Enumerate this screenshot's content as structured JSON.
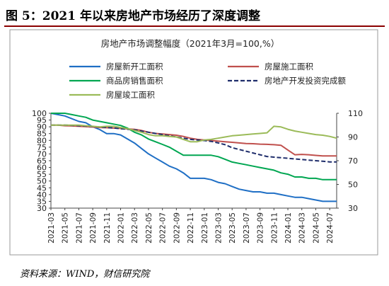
{
  "figure": {
    "title": "图 5：2021 年以来房地产市场经历了深度调整",
    "source": "资料来源：WIND，财信研究院"
  },
  "chart_data": {
    "type": "line",
    "title": "房地产市场调整幅度（2021年3月=100,%）",
    "xlabel": "",
    "ylabel": "",
    "x": [
      "2021-03",
      "2021-04",
      "2021-05",
      "2021-06",
      "2021-07",
      "2021-08",
      "2021-09",
      "2021-10",
      "2021-11",
      "2021-12",
      "2022-01",
      "2022-02",
      "2022-03",
      "2022-04",
      "2022-05",
      "2022-06",
      "2022-07",
      "2022-08",
      "2022-09",
      "2022-10",
      "2022-11",
      "2022-12",
      "2023-01",
      "2023-02",
      "2023-03",
      "2023-04",
      "2023-05",
      "2023-06",
      "2023-07",
      "2023-08",
      "2023-09",
      "2023-10",
      "2023-11",
      "2023-12",
      "2024-01",
      "2024-02",
      "2024-03",
      "2024-04",
      "2024-05",
      "2024-06",
      "2024-07",
      "2024-08"
    ],
    "x_tick_labels": [
      "2021-03",
      "2021-05",
      "2021-07",
      "2021-09",
      "2021-11",
      "2022-01",
      "2022-03",
      "2022-05",
      "2022-07",
      "2022-09",
      "2022-11",
      "2023-01",
      "2023-03",
      "2023-05",
      "2023-07",
      "2023-09",
      "2023-11",
      "2024-01",
      "2024-03",
      "2024-05",
      "2024-07"
    ],
    "y_left": {
      "lim": [
        30,
        100
      ],
      "ticks": [
        30,
        35,
        40,
        45,
        50,
        55,
        60,
        65,
        70,
        75,
        80,
        85,
        90,
        95,
        100
      ]
    },
    "y_right": {
      "lim": [
        30,
        110
      ],
      "ticks": [
        30,
        50,
        70,
        90,
        110
      ]
    },
    "legend_placement": "top",
    "series": [
      {
        "name": "房屋新开工面积",
        "axis": "left",
        "color": "#1f6fc5",
        "dash": "",
        "values": [
          100,
          99,
          98,
          96,
          94,
          93,
          90,
          88,
          85,
          85,
          84,
          81,
          78,
          74,
          70,
          67,
          64,
          61,
          59,
          56,
          52,
          52,
          52,
          51,
          49,
          48,
          46,
          44,
          43,
          42,
          42,
          41,
          41,
          40,
          39,
          38,
          38,
          37,
          36,
          35,
          35,
          35
        ]
      },
      {
        "name": "房屋施工面积",
        "axis": "right",
        "color": "#c0504d",
        "dash": "",
        "values": [
          100,
          100,
          99.5,
          99.3,
          99,
          98.7,
          98.4,
          98,
          97.8,
          97.5,
          97.2,
          96.8,
          96.4,
          95.5,
          94,
          93,
          92.5,
          92,
          91.5,
          90.5,
          89,
          88,
          87.5,
          87,
          86.5,
          86,
          85.5,
          85,
          84.5,
          84.3,
          84,
          83.8,
          83.5,
          83,
          79,
          75,
          75.3,
          75,
          74.5,
          74,
          74,
          74
        ]
      },
      {
        "name": "商品房销售面积",
        "axis": "left",
        "color": "#00a651",
        "dash": "",
        "values": [
          100,
          100,
          100,
          99,
          98,
          97,
          95,
          94,
          93,
          92,
          91,
          89,
          86,
          84,
          81,
          79,
          77,
          75,
          72,
          69,
          69,
          69,
          69,
          69,
          68,
          66,
          64,
          63,
          62,
          61,
          60,
          59,
          58,
          56,
          55,
          53,
          53,
          52,
          52,
          51,
          51,
          51
        ]
      },
      {
        "name": "房地产开发投资完成额",
        "axis": "right",
        "color": "#1f2d6b",
        "dash": "6,3",
        "values": [
          100,
          100,
          100,
          99.8,
          99.5,
          99.2,
          98.8,
          98.4,
          98,
          97.6,
          97,
          96.5,
          96,
          95,
          94,
          93,
          92,
          91,
          90,
          89,
          88,
          87.5,
          87,
          86.3,
          85,
          83.5,
          81,
          79.5,
          78,
          76.5,
          75,
          73.5,
          73,
          72.5,
          72,
          71.5,
          71,
          70.5,
          70,
          69.5,
          69,
          69
        ]
      },
      {
        "name": "房屋竣工面积",
        "axis": "right",
        "color": "#9bbb59",
        "dash": "",
        "values": [
          100,
          100,
          100,
          100,
          100,
          99.5,
          99,
          98.5,
          99,
          99,
          98,
          97,
          95.5,
          94,
          92,
          91,
          91,
          90.5,
          90,
          88,
          86,
          86,
          87.5,
          88,
          89,
          90,
          91,
          91.5,
          92,
          92.5,
          93,
          93.5,
          99,
          98.5,
          96.5,
          95,
          94,
          93,
          92,
          91.5,
          90.5,
          89
        ]
      }
    ]
  }
}
